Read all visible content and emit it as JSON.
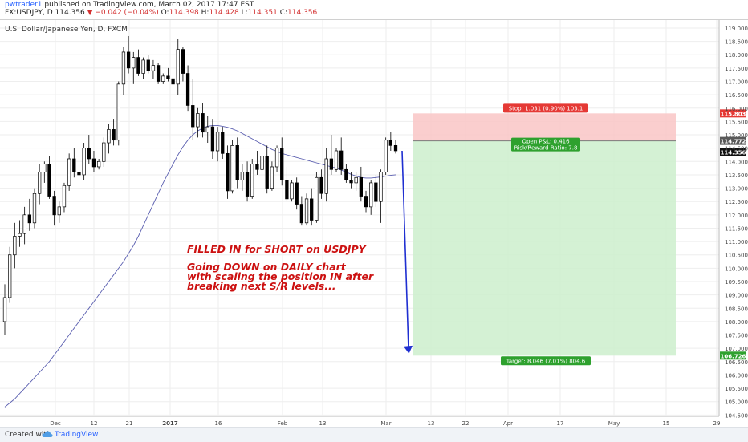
{
  "header": {
    "author": "pwtrader1",
    "published": "published on TradingView.com, March 02, 2017 17:47 EST",
    "symbol": "FX:USDJPY, D",
    "last": "114.356",
    "change": "▼ −0.042 (−0.04%)",
    "o_label": "O:",
    "o_value": "114.398",
    "h_label": "H:",
    "h_value": "114.428",
    "l_label": "L:",
    "l_value": "114.351",
    "c_label": "C:",
    "c_value": "114.356"
  },
  "footer": {
    "created_with": "Created with",
    "brand": "TradingView"
  },
  "chart_data": {
    "type": "candlestick",
    "title": "U.S. Dollar/Japanese Yen, D, FXCM",
    "y_ticks": [
      104.5,
      105.0,
      105.5,
      106.0,
      106.5,
      107.0,
      107.5,
      108.0,
      108.5,
      109.0,
      109.5,
      110.0,
      110.5,
      111.0,
      111.5,
      112.0,
      112.5,
      113.0,
      113.5,
      114.0,
      114.5,
      115.0,
      115.5,
      116.0,
      116.5,
      117.0,
      117.5,
      118.0,
      118.5,
      119.0
    ],
    "y_range": [
      104.45,
      119.3
    ],
    "x_ticks": [
      "Dec",
      "12",
      "21",
      "2017",
      "16",
      "Feb",
      "13",
      "Mar",
      "13",
      "22",
      "Apr",
      "17",
      "May",
      "15",
      "29"
    ],
    "candles": [
      {
        "o": 108.0,
        "h": 109.4,
        "l": 107.5,
        "c": 108.9
      },
      {
        "o": 108.9,
        "h": 110.8,
        "l": 108.7,
        "c": 110.5
      },
      {
        "o": 110.5,
        "h": 111.7,
        "l": 110.0,
        "c": 111.2
      },
      {
        "o": 111.2,
        "h": 111.8,
        "l": 110.8,
        "c": 111.3
      },
      {
        "o": 111.3,
        "h": 112.3,
        "l": 110.9,
        "c": 112.0
      },
      {
        "o": 112.0,
        "h": 112.6,
        "l": 111.4,
        "c": 111.7
      },
      {
        "o": 111.7,
        "h": 113.0,
        "l": 111.5,
        "c": 112.8
      },
      {
        "o": 112.8,
        "h": 113.9,
        "l": 112.4,
        "c": 113.6
      },
      {
        "o": 113.6,
        "h": 114.0,
        "l": 113.2,
        "c": 113.9
      },
      {
        "o": 113.9,
        "h": 114.2,
        "l": 112.6,
        "c": 112.7
      },
      {
        "o": 112.7,
        "h": 112.9,
        "l": 111.6,
        "c": 112.0
      },
      {
        "o": 112.0,
        "h": 112.5,
        "l": 111.7,
        "c": 112.3
      },
      {
        "o": 112.3,
        "h": 113.2,
        "l": 112.1,
        "c": 113.1
      },
      {
        "o": 113.1,
        "h": 114.3,
        "l": 112.9,
        "c": 114.1
      },
      {
        "o": 114.1,
        "h": 114.5,
        "l": 113.4,
        "c": 113.6
      },
      {
        "o": 113.6,
        "h": 113.8,
        "l": 113.3,
        "c": 113.5
      },
      {
        "o": 113.5,
        "h": 114.7,
        "l": 113.3,
        "c": 114.5
      },
      {
        "o": 114.5,
        "h": 115.0,
        "l": 113.9,
        "c": 114.1
      },
      {
        "o": 114.1,
        "h": 114.4,
        "l": 113.6,
        "c": 113.8
      },
      {
        "o": 113.8,
        "h": 114.1,
        "l": 113.7,
        "c": 114.0
      },
      {
        "o": 114.0,
        "h": 114.9,
        "l": 113.8,
        "c": 114.7
      },
      {
        "o": 114.7,
        "h": 115.4,
        "l": 114.3,
        "c": 115.2
      },
      {
        "o": 115.2,
        "h": 115.6,
        "l": 114.6,
        "c": 114.8
      },
      {
        "o": 114.8,
        "h": 117.0,
        "l": 114.6,
        "c": 116.9
      },
      {
        "o": 116.9,
        "h": 118.3,
        "l": 116.5,
        "c": 118.1
      },
      {
        "o": 118.1,
        "h": 118.7,
        "l": 117.3,
        "c": 117.5
      },
      {
        "o": 117.5,
        "h": 118.1,
        "l": 116.9,
        "c": 117.9
      },
      {
        "o": 117.9,
        "h": 118.2,
        "l": 117.2,
        "c": 117.3
      },
      {
        "o": 117.3,
        "h": 117.9,
        "l": 117.1,
        "c": 117.8
      },
      {
        "o": 117.8,
        "h": 118.0,
        "l": 117.3,
        "c": 117.4
      },
      {
        "o": 117.4,
        "h": 117.8,
        "l": 117.1,
        "c": 117.6
      },
      {
        "o": 117.6,
        "h": 117.7,
        "l": 116.9,
        "c": 117.0
      },
      {
        "o": 117.0,
        "h": 117.3,
        "l": 116.9,
        "c": 117.2
      },
      {
        "o": 117.2,
        "h": 117.5,
        "l": 117.0,
        "c": 117.1
      },
      {
        "o": 117.1,
        "h": 117.3,
        "l": 116.8,
        "c": 116.9
      },
      {
        "o": 116.9,
        "h": 118.6,
        "l": 116.5,
        "c": 118.2
      },
      {
        "o": 118.2,
        "h": 118.3,
        "l": 117.0,
        "c": 117.3
      },
      {
        "o": 117.3,
        "h": 117.6,
        "l": 115.9,
        "c": 116.1
      },
      {
        "o": 116.1,
        "h": 117.1,
        "l": 114.8,
        "c": 115.3
      },
      {
        "o": 115.3,
        "h": 116.0,
        "l": 114.9,
        "c": 115.8
      },
      {
        "o": 115.8,
        "h": 116.2,
        "l": 114.9,
        "c": 115.1
      },
      {
        "o": 115.1,
        "h": 115.7,
        "l": 114.7,
        "c": 115.3
      },
      {
        "o": 115.3,
        "h": 115.6,
        "l": 114.1,
        "c": 114.4
      },
      {
        "o": 114.4,
        "h": 115.3,
        "l": 114.0,
        "c": 115.1
      },
      {
        "o": 115.1,
        "h": 115.3,
        "l": 114.1,
        "c": 114.3
      },
      {
        "o": 114.3,
        "h": 114.6,
        "l": 112.6,
        "c": 112.9
      },
      {
        "o": 112.9,
        "h": 114.8,
        "l": 112.8,
        "c": 114.6
      },
      {
        "o": 114.6,
        "h": 114.9,
        "l": 113.0,
        "c": 113.3
      },
      {
        "o": 113.3,
        "h": 113.9,
        "l": 112.9,
        "c": 113.6
      },
      {
        "o": 113.6,
        "h": 114.0,
        "l": 112.5,
        "c": 112.7
      },
      {
        "o": 112.7,
        "h": 114.1,
        "l": 112.6,
        "c": 113.9
      },
      {
        "o": 113.9,
        "h": 114.4,
        "l": 113.5,
        "c": 113.7
      },
      {
        "o": 113.7,
        "h": 114.3,
        "l": 113.4,
        "c": 114.2
      },
      {
        "o": 114.2,
        "h": 114.6,
        "l": 112.8,
        "c": 113.0
      },
      {
        "o": 113.0,
        "h": 114.0,
        "l": 112.9,
        "c": 113.8
      },
      {
        "o": 113.8,
        "h": 114.6,
        "l": 113.6,
        "c": 114.5
      },
      {
        "o": 114.5,
        "h": 114.9,
        "l": 113.1,
        "c": 113.3
      },
      {
        "o": 113.3,
        "h": 113.8,
        "l": 112.5,
        "c": 112.6
      },
      {
        "o": 112.6,
        "h": 113.3,
        "l": 112.5,
        "c": 113.2
      },
      {
        "o": 113.2,
        "h": 113.4,
        "l": 112.2,
        "c": 112.4
      },
      {
        "o": 112.4,
        "h": 112.7,
        "l": 111.6,
        "c": 111.7
      },
      {
        "o": 111.7,
        "h": 112.8,
        "l": 111.6,
        "c": 112.6
      },
      {
        "o": 112.6,
        "h": 113.0,
        "l": 111.6,
        "c": 111.8
      },
      {
        "o": 111.8,
        "h": 113.6,
        "l": 111.7,
        "c": 113.4
      },
      {
        "o": 113.4,
        "h": 113.7,
        "l": 112.6,
        "c": 112.8
      },
      {
        "o": 112.8,
        "h": 114.5,
        "l": 112.5,
        "c": 114.1
      },
      {
        "o": 114.1,
        "h": 115.0,
        "l": 113.5,
        "c": 113.7
      },
      {
        "o": 113.7,
        "h": 114.5,
        "l": 113.6,
        "c": 114.4
      },
      {
        "o": 114.4,
        "h": 114.9,
        "l": 113.5,
        "c": 113.7
      },
      {
        "o": 113.7,
        "h": 113.9,
        "l": 113.2,
        "c": 113.3
      },
      {
        "o": 113.3,
        "h": 113.6,
        "l": 113.0,
        "c": 113.2
      },
      {
        "o": 113.2,
        "h": 113.6,
        "l": 112.9,
        "c": 113.4
      },
      {
        "o": 113.4,
        "h": 113.8,
        "l": 112.5,
        "c": 112.7
      },
      {
        "o": 112.7,
        "h": 112.9,
        "l": 112.1,
        "c": 112.3
      },
      {
        "o": 112.3,
        "h": 113.3,
        "l": 112.0,
        "c": 113.2
      },
      {
        "o": 113.2,
        "h": 113.5,
        "l": 112.3,
        "c": 112.5
      },
      {
        "o": 112.5,
        "h": 113.7,
        "l": 111.7,
        "c": 113.6
      },
      {
        "o": 113.6,
        "h": 114.9,
        "l": 113.5,
        "c": 114.8
      },
      {
        "o": 114.8,
        "h": 115.1,
        "l": 114.4,
        "c": 114.6
      },
      {
        "o": 114.6,
        "h": 114.8,
        "l": 114.3,
        "c": 114.4
      }
    ],
    "moving_average": {
      "color": "#5b5fb0",
      "values": [
        104.8,
        104.95,
        105.1,
        105.3,
        105.5,
        105.7,
        105.9,
        106.1,
        106.3,
        106.5,
        106.75,
        107.0,
        107.25,
        107.5,
        107.75,
        108.0,
        108.25,
        108.5,
        108.75,
        109.0,
        109.25,
        109.5,
        109.75,
        110.0,
        110.25,
        110.55,
        110.85,
        111.2,
        111.6,
        112.0,
        112.4,
        112.8,
        113.2,
        113.55,
        113.9,
        114.25,
        114.55,
        114.8,
        115.0,
        115.15,
        115.25,
        115.32,
        115.35,
        115.35,
        115.32,
        115.28,
        115.22,
        115.15,
        115.05,
        114.95,
        114.85,
        114.75,
        114.65,
        114.55,
        114.45,
        114.38,
        114.3,
        114.25,
        114.2,
        114.15,
        114.1,
        114.05,
        114.0,
        113.95,
        113.9,
        113.85,
        113.8,
        113.75,
        113.68,
        113.6,
        113.52,
        113.45,
        113.4,
        113.38,
        113.38,
        113.4,
        113.42,
        113.45,
        113.48,
        113.5
      ]
    },
    "current_price": 114.356,
    "position": {
      "stop_label": "Stop: 1.031 (0.90%) 103.1",
      "pnl_label": "Open P&L: 0.416",
      "rr_label": "Risk/Reward Ratio: 7.8",
      "target_label": "Target: 8.046 (7.01%) 804.6",
      "stop": 115.803,
      "entry": 114.772,
      "current": 114.356,
      "target": 106.726,
      "stop_tag": "115.803",
      "entry_tag": "114.772",
      "current_tag": "114.356",
      "target_tag": "106.726"
    },
    "annotation": {
      "line1": "FILLED IN for SHORT on USDJPY",
      "line2": "Going DOWN on DAILY chart",
      "line3": "with scaling the position IN after",
      "line4": "breaking next S/R levels...",
      "color": "#cc1111"
    },
    "arrow": {
      "from": 114.4,
      "to": 106.8,
      "color": "#1f2fd1"
    },
    "colors": {
      "up": "#ffffff",
      "down": "#000000",
      "stop_fill": "#f9c6c6",
      "target_fill": "#cdeecd",
      "stop_label": "#e53935",
      "target_label": "#2ea12e",
      "pnl_label": "#2ea12e",
      "grid": "#eeeeee"
    },
    "grid": true
  }
}
